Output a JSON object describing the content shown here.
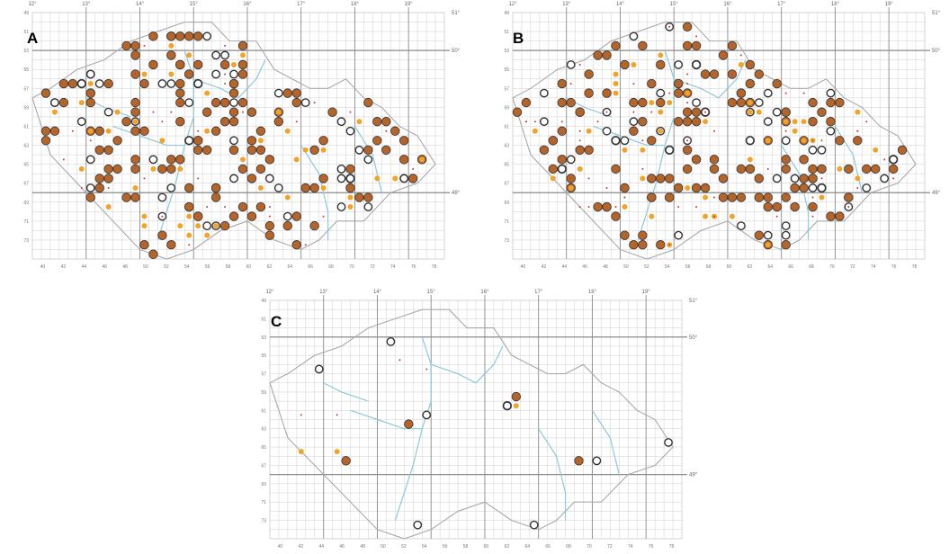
{
  "colors": {
    "grid": "#cfcfcf",
    "grid_major": "#8a8a8a",
    "border": "#a9a9a9",
    "river": "#8ec9d8",
    "brown": "#b5652a",
    "orange": "#f2a42a",
    "ring": "#333333",
    "red": "#d9372e"
  },
  "panels": [
    {
      "id": "a",
      "letter": "A",
      "top_labels": [
        "12°",
        "13°",
        "14°",
        "15°",
        "16°",
        "17°",
        "18°",
        "19°"
      ],
      "right_labels": [
        "51°",
        "50°",
        "49°"
      ],
      "left_labels": [
        "49",
        "51",
        "53",
        "55",
        "57",
        "59",
        "61",
        "63",
        "65",
        "67",
        "69",
        "71",
        "73"
      ],
      "bottom_labels": [
        "40",
        "42",
        "44",
        "46",
        "48",
        "50",
        "52",
        "54",
        "56",
        "58",
        "60",
        "62",
        "64",
        "66",
        "68",
        "70",
        "72",
        "74",
        "76",
        "78"
      ]
    },
    {
      "id": "b",
      "letter": "B",
      "top_labels": [
        "12°",
        "13°",
        "14°",
        "15°",
        "16°",
        "17°",
        "18°",
        "19°"
      ],
      "right_labels": [
        "51°",
        "50°",
        "49°"
      ],
      "left_labels": [
        "49",
        "51",
        "53",
        "55",
        "57",
        "59",
        "61",
        "63",
        "65",
        "67",
        "69",
        "71",
        "73"
      ],
      "bottom_labels": [
        "40",
        "42",
        "44",
        "46",
        "48",
        "50",
        "52",
        "54",
        "56",
        "58",
        "60",
        "62",
        "64",
        "66",
        "68",
        "70",
        "72",
        "74",
        "76",
        "78"
      ]
    },
    {
      "id": "c",
      "letter": "C",
      "top_labels": [
        "12°",
        "13°",
        "14°",
        "15°",
        "16°",
        "17°",
        "18°",
        "19°"
      ],
      "right_labels": [
        "51°",
        "50°",
        "49°"
      ],
      "left_labels": [
        "49",
        "51",
        "53",
        "55",
        "57",
        "59",
        "61",
        "63",
        "65",
        "67",
        "69",
        "71",
        "73"
      ],
      "bottom_labels": [
        "40",
        "42",
        "44",
        "46",
        "48",
        "50",
        "52",
        "54",
        "56",
        "58",
        "60",
        "62",
        "64",
        "66",
        "68",
        "70",
        "72",
        "74",
        "76",
        "78"
      ]
    }
  ]
}
